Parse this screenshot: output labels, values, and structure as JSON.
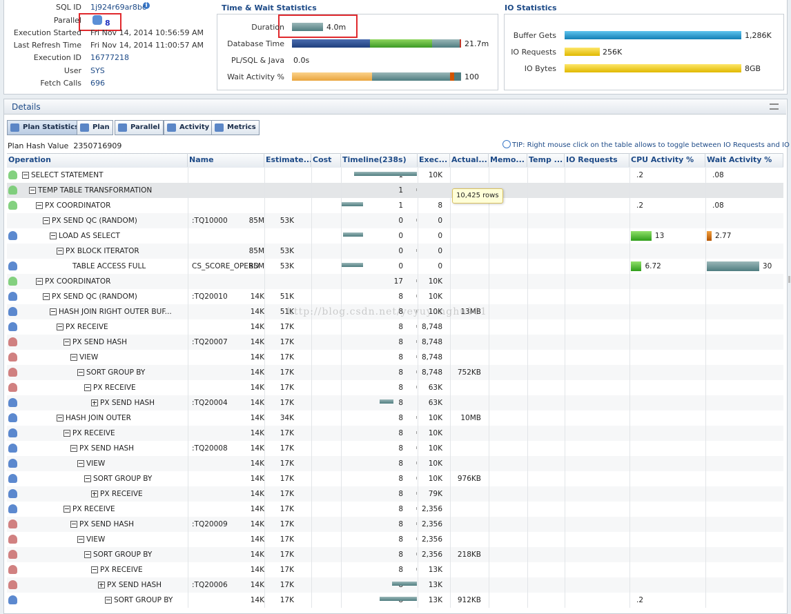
{
  "summary": {
    "rows": [
      {
        "label": "SQL ID",
        "value": "1j924r69ar8bc"
      },
      {
        "label": "Parallel",
        "value": "8"
      },
      {
        "label": "Execution Started",
        "value": "Fri Nov 14, 2014 10:56:59 AM"
      },
      {
        "label": "Last Refresh Time",
        "value": "Fri Nov 14, 2014 11:00:57 AM"
      },
      {
        "label": "Execution ID",
        "value": "16777218"
      },
      {
        "label": "User",
        "value": "SYS"
      },
      {
        "label": "Fetch Calls",
        "value": "696"
      }
    ]
  },
  "time_wait": {
    "title": "Time & Wait Statistics",
    "rows": [
      {
        "label": "Duration",
        "value": "4.0m"
      },
      {
        "label": "Database Time",
        "value": "21.7m"
      },
      {
        "label": "PL/SQL & Java",
        "value": "0.0s"
      },
      {
        "label": "Wait Activity %",
        "value": "100"
      }
    ]
  },
  "io": {
    "title": "IO Statistics",
    "rows": [
      {
        "label": "Buffer Gets",
        "value": "1,286K"
      },
      {
        "label": "IO Requests",
        "value": "256K"
      },
      {
        "label": "IO Bytes",
        "value": "8GB"
      }
    ]
  },
  "details": {
    "title": "Details",
    "tabs": [
      "Plan Statistics",
      "Plan",
      "Parallel",
      "Activity",
      "Metrics"
    ],
    "plan_hash_label": "Plan Hash Value",
    "plan_hash": "2350716909",
    "tip": "TIP: Right mouse click on the table allows to toggle between IO Requests and IO Bytes",
    "columns": [
      "Operation",
      "Name",
      "Estimate...",
      "Cost",
      "Timeline(238s)",
      "Exec...",
      "Actual...",
      "Memo...",
      "Temp ...",
      "IO Requests",
      "CPU Activity %",
      "Wait Activity %"
    ],
    "rows": [
      [
        "SELECT STATEMENT",
        null,
        null,
        null,
        "1",
        "10K",
        null,
        ".2",
        ".08"
      ],
      [
        "TEMP TABLE TRANSFORMATION",
        null,
        null,
        null,
        "1",
        null,
        null,
        null,
        null
      ],
      [
        "PX COORDINATOR",
        null,
        null,
        null,
        "1",
        "8",
        null,
        ".2",
        ".08"
      ],
      [
        "PX SEND QC (RANDOM)",
        ":TQ10000",
        "85M",
        "53K",
        "0",
        "0",
        null,
        null,
        null
      ],
      [
        "LOAD AS SELECT",
        null,
        null,
        null,
        "0",
        "0",
        null,
        "13",
        "2.77"
      ],
      [
        "PX BLOCK ITERATOR",
        null,
        "85M",
        "53K",
        "0",
        "0",
        null,
        null,
        null
      ],
      [
        "TABLE ACCESS FULL",
        "CS_SCORE_OPERD",
        "85M",
        "53K",
        "0",
        "0",
        null,
        "6.72",
        "30"
      ],
      [
        "PX COORDINATOR",
        null,
        null,
        null,
        "17",
        "10K",
        null,
        null,
        null
      ],
      [
        "PX SEND QC (RANDOM)",
        ":TQ20010",
        "14K",
        "51K",
        "8",
        "10K",
        null,
        null,
        null
      ],
      [
        "HASH JOIN RIGHT OUTER BUF...",
        null,
        "14K",
        "51K",
        "8",
        "10K",
        "13MB",
        null,
        null
      ],
      [
        "PX RECEIVE",
        null,
        "14K",
        "17K",
        "8",
        "8,748",
        null,
        null,
        null
      ],
      [
        "PX SEND HASH",
        ":TQ20007",
        "14K",
        "17K",
        "8",
        "8,748",
        null,
        null,
        null
      ],
      [
        "VIEW",
        null,
        "14K",
        "17K",
        "8",
        "8,748",
        null,
        null,
        null
      ],
      [
        "SORT GROUP BY",
        null,
        "14K",
        "17K",
        "8",
        "8,748",
        "752KB",
        null,
        null
      ],
      [
        "PX RECEIVE",
        null,
        "14K",
        "17K",
        "8",
        "63K",
        null,
        null,
        null
      ],
      [
        "PX SEND HASH",
        ":TQ20004",
        "14K",
        "17K",
        "8",
        "63K",
        null,
        null,
        null
      ],
      [
        "HASH JOIN OUTER",
        null,
        "14K",
        "34K",
        "8",
        "10K",
        "10MB",
        null,
        null
      ],
      [
        "PX RECEIVE",
        null,
        "14K",
        "17K",
        "8",
        "10K",
        null,
        null,
        null
      ],
      [
        "PX SEND HASH",
        ":TQ20008",
        "14K",
        "17K",
        "8",
        "10K",
        null,
        null,
        null
      ],
      [
        "VIEW",
        null,
        "14K",
        "17K",
        "8",
        "10K",
        null,
        null,
        null
      ],
      [
        "SORT GROUP BY",
        null,
        "14K",
        "17K",
        "8",
        "10K",
        "976KB",
        null,
        null
      ],
      [
        "PX RECEIVE",
        null,
        "14K",
        "17K",
        "8",
        "79K",
        null,
        null,
        null
      ],
      [
        "PX RECEIVE",
        null,
        "14K",
        "17K",
        "8",
        "2,356",
        null,
        null,
        null
      ],
      [
        "PX SEND HASH",
        ":TQ20009",
        "14K",
        "17K",
        "8",
        "2,356",
        null,
        null,
        null
      ],
      [
        "VIEW",
        null,
        "14K",
        "17K",
        "8",
        "2,356",
        null,
        null,
        null
      ],
      [
        "SORT GROUP BY",
        null,
        "14K",
        "17K",
        "8",
        "2,356",
        "218KB",
        null,
        null
      ],
      [
        "PX RECEIVE",
        null,
        "14K",
        "17K",
        "8",
        "13K",
        null,
        null,
        null
      ],
      [
        "PX SEND HASH",
        ":TQ20006",
        "14K",
        "17K",
        "8",
        "13K",
        null,
        null,
        null
      ],
      [
        "SORT GROUP BY",
        null,
        "14K",
        "17K",
        "8",
        "13K",
        "912KB",
        ".2",
        null
      ]
    ],
    "tooltip": "10,425 rows",
    "watermark": "http://blog.csdn.net/yeyuyonghu001"
  }
}
